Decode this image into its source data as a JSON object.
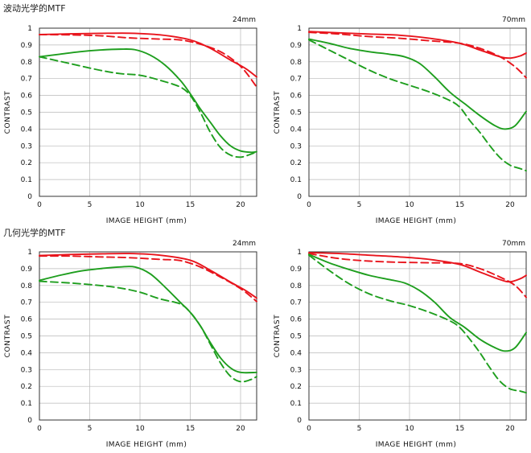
{
  "sections": [
    {
      "title": "波动光学的MTF"
    },
    {
      "title": "几何光学的MTF"
    }
  ],
  "colors": {
    "sagittal_red": "#e8141c",
    "green": "#1e9e1e",
    "grid": "#b8b8b8",
    "frame": "#333333"
  },
  "chart_data": [
    {
      "type": "line",
      "title": "24mm",
      "xlabel": "IMAGE HEIGHT (mm)",
      "ylabel": "CONTRAST",
      "xlim": [
        0,
        21.6
      ],
      "ylim": [
        0,
        1
      ],
      "xticks": [
        "0",
        "5",
        "10",
        "15",
        "20"
      ],
      "yticks": [
        "0",
        "0.1",
        "0.2",
        "0.3",
        "0.4",
        "0.5",
        "0.6",
        "0.7",
        "0.8",
        "0.9",
        "1"
      ],
      "grid": true,
      "series": [
        {
          "color": "red",
          "dash": false,
          "points": [
            [
              0,
              0.962
            ],
            [
              3,
              0.966
            ],
            [
              6,
              0.969
            ],
            [
              9,
              0.97
            ],
            [
              12,
              0.96
            ],
            [
              15,
              0.93
            ],
            [
              17,
              0.88
            ],
            [
              19,
              0.81
            ],
            [
              20.5,
              0.76
            ],
            [
              21.6,
              0.71
            ]
          ]
        },
        {
          "color": "red",
          "dash": true,
          "points": [
            [
              0,
              0.962
            ],
            [
              3,
              0.96
            ],
            [
              6,
              0.955
            ],
            [
              9,
              0.942
            ],
            [
              12,
              0.935
            ],
            [
              14,
              0.93
            ],
            [
              16,
              0.905
            ],
            [
              18,
              0.86
            ],
            [
              19.5,
              0.8
            ],
            [
              20.5,
              0.74
            ],
            [
              21.6,
              0.65
            ]
          ]
        },
        {
          "color": "green",
          "dash": false,
          "points": [
            [
              0,
              0.83
            ],
            [
              2,
              0.845
            ],
            [
              4,
              0.86
            ],
            [
              6,
              0.87
            ],
            [
              8,
              0.875
            ],
            [
              9.5,
              0.872
            ],
            [
              11,
              0.84
            ],
            [
              12.5,
              0.78
            ],
            [
              14,
              0.69
            ],
            [
              15,
              0.61
            ],
            [
              16,
              0.52
            ],
            [
              17,
              0.44
            ],
            [
              18,
              0.36
            ],
            [
              19,
              0.3
            ],
            [
              20,
              0.27
            ],
            [
              21,
              0.262
            ],
            [
              21.6,
              0.265
            ]
          ]
        },
        {
          "color": "green",
          "dash": true,
          "points": [
            [
              0,
              0.83
            ],
            [
              3,
              0.79
            ],
            [
              6,
              0.75
            ],
            [
              8,
              0.73
            ],
            [
              10,
              0.72
            ],
            [
              12,
              0.69
            ],
            [
              14,
              0.65
            ],
            [
              15,
              0.6
            ],
            [
              16,
              0.5
            ],
            [
              17,
              0.38
            ],
            [
              18,
              0.29
            ],
            [
              19,
              0.245
            ],
            [
              20,
              0.233
            ],
            [
              21,
              0.25
            ],
            [
              21.6,
              0.265
            ]
          ]
        }
      ]
    },
    {
      "type": "line",
      "title": "70mm",
      "xlabel": "IMAGE HEIGHT (mm)",
      "ylabel": "CONTRAST",
      "xlim": [
        0,
        21.6
      ],
      "ylim": [
        0,
        1
      ],
      "xticks": [
        "0",
        "5",
        "10",
        "15",
        "20"
      ],
      "yticks": [
        "0",
        "0.1",
        "0.2",
        "0.3",
        "0.4",
        "0.5",
        "0.6",
        "0.7",
        "0.8",
        "0.9",
        "1"
      ],
      "grid": true,
      "series": [
        {
          "color": "red",
          "dash": false,
          "points": [
            [
              0,
              0.98
            ],
            [
              3,
              0.972
            ],
            [
              6,
              0.965
            ],
            [
              9,
              0.958
            ],
            [
              12,
              0.94
            ],
            [
              15,
              0.91
            ],
            [
              17,
              0.87
            ],
            [
              19,
              0.83
            ],
            [
              20,
              0.822
            ],
            [
              21,
              0.835
            ],
            [
              21.6,
              0.852
            ]
          ]
        },
        {
          "color": "red",
          "dash": true,
          "points": [
            [
              0,
              0.975
            ],
            [
              3,
              0.965
            ],
            [
              6,
              0.95
            ],
            [
              9,
              0.94
            ],
            [
              12,
              0.925
            ],
            [
              15,
              0.91
            ],
            [
              17,
              0.88
            ],
            [
              19,
              0.83
            ],
            [
              20.5,
              0.77
            ],
            [
              21.6,
              0.705
            ]
          ]
        },
        {
          "color": "green",
          "dash": false,
          "points": [
            [
              0,
              0.935
            ],
            [
              2,
              0.91
            ],
            [
              4,
              0.88
            ],
            [
              6,
              0.86
            ],
            [
              8,
              0.845
            ],
            [
              9.5,
              0.83
            ],
            [
              11,
              0.79
            ],
            [
              12.5,
              0.71
            ],
            [
              14,
              0.62
            ],
            [
              15.5,
              0.55
            ],
            [
              17,
              0.48
            ],
            [
              18.5,
              0.42
            ],
            [
              19.5,
              0.4
            ],
            [
              20.5,
              0.42
            ],
            [
              21.6,
              0.505
            ]
          ]
        },
        {
          "color": "green",
          "dash": true,
          "points": [
            [
              0,
              0.93
            ],
            [
              2,
              0.87
            ],
            [
              4,
              0.81
            ],
            [
              6,
              0.75
            ],
            [
              8,
              0.7
            ],
            [
              10,
              0.66
            ],
            [
              12,
              0.62
            ],
            [
              14,
              0.57
            ],
            [
              15,
              0.53
            ],
            [
              16,
              0.45
            ],
            [
              17,
              0.38
            ],
            [
              18,
              0.3
            ],
            [
              19,
              0.23
            ],
            [
              20,
              0.185
            ],
            [
              21,
              0.165
            ],
            [
              21.6,
              0.152
            ]
          ]
        }
      ]
    },
    {
      "type": "line",
      "title": "24mm",
      "xlabel": "IMAGE HEIGHT (mm)",
      "ylabel": "CONTRAST",
      "xlim": [
        0,
        21.6
      ],
      "ylim": [
        0,
        1
      ],
      "xticks": [
        "0",
        "5",
        "10",
        "15",
        "20"
      ],
      "yticks": [
        "0",
        "0.1",
        "0.2",
        "0.3",
        "0.4",
        "0.5",
        "0.6",
        "0.7",
        "0.8",
        "0.9",
        "1"
      ],
      "grid": true,
      "series": [
        {
          "color": "red",
          "dash": false,
          "points": [
            [
              0,
              0.978
            ],
            [
              3,
              0.984
            ],
            [
              6,
              0.988
            ],
            [
              9,
              0.99
            ],
            [
              12,
              0.98
            ],
            [
              15,
              0.95
            ],
            [
              17,
              0.89
            ],
            [
              19,
              0.82
            ],
            [
              20.5,
              0.77
            ],
            [
              21.6,
              0.725
            ]
          ]
        },
        {
          "color": "red",
          "dash": true,
          "points": [
            [
              0,
              0.975
            ],
            [
              3,
              0.975
            ],
            [
              6,
              0.97
            ],
            [
              9,
              0.965
            ],
            [
              12,
              0.955
            ],
            [
              14,
              0.948
            ],
            [
              16,
              0.91
            ],
            [
              18,
              0.85
            ],
            [
              19.5,
              0.8
            ],
            [
              20.5,
              0.76
            ],
            [
              21.6,
              0.705
            ]
          ]
        },
        {
          "color": "green",
          "dash": false,
          "points": [
            [
              0,
              0.83
            ],
            [
              2,
              0.86
            ],
            [
              4,
              0.885
            ],
            [
              6,
              0.9
            ],
            [
              8,
              0.91
            ],
            [
              9.5,
              0.91
            ],
            [
              11,
              0.87
            ],
            [
              12.5,
              0.79
            ],
            [
              14,
              0.7
            ],
            [
              15,
              0.64
            ],
            [
              16,
              0.56
            ],
            [
              17,
              0.46
            ],
            [
              18,
              0.37
            ],
            [
              19,
              0.31
            ],
            [
              20,
              0.283
            ],
            [
              21.6,
              0.283
            ]
          ]
        },
        {
          "color": "green",
          "dash": true,
          "points": [
            [
              0,
              0.825
            ],
            [
              3,
              0.815
            ],
            [
              6,
              0.8
            ],
            [
              8,
              0.785
            ],
            [
              10,
              0.76
            ],
            [
              12,
              0.72
            ],
            [
              14,
              0.69
            ],
            [
              15,
              0.64
            ],
            [
              16,
              0.56
            ],
            [
              17,
              0.45
            ],
            [
              18,
              0.34
            ],
            [
              19,
              0.26
            ],
            [
              20,
              0.228
            ],
            [
              21,
              0.24
            ],
            [
              21.6,
              0.258
            ]
          ]
        }
      ]
    },
    {
      "type": "line",
      "title": "70mm",
      "xlabel": "IMAGE HEIGHT (mm)",
      "ylabel": "CONTRAST",
      "xlim": [
        0,
        21.6
      ],
      "ylim": [
        0,
        1
      ],
      "xticks": [
        "0",
        "5",
        "10",
        "15",
        "20"
      ],
      "yticks": [
        "0",
        "0.1",
        "0.2",
        "0.3",
        "0.4",
        "0.5",
        "0.6",
        "0.7",
        "0.8",
        "0.9",
        "1"
      ],
      "grid": true,
      "series": [
        {
          "color": "red",
          "dash": false,
          "points": [
            [
              0,
              0.995
            ],
            [
              3,
              0.99
            ],
            [
              6,
              0.98
            ],
            [
              9,
              0.97
            ],
            [
              12,
              0.955
            ],
            [
              15,
              0.925
            ],
            [
              17,
              0.88
            ],
            [
              19,
              0.835
            ],
            [
              20,
              0.822
            ],
            [
              21,
              0.84
            ],
            [
              21.6,
              0.86
            ]
          ]
        },
        {
          "color": "red",
          "dash": true,
          "points": [
            [
              0,
              0.99
            ],
            [
              3,
              0.96
            ],
            [
              6,
              0.945
            ],
            [
              9,
              0.938
            ],
            [
              12,
              0.935
            ],
            [
              15,
              0.93
            ],
            [
              17,
              0.9
            ],
            [
              19,
              0.85
            ],
            [
              20.5,
              0.8
            ],
            [
              21.6,
              0.73
            ]
          ]
        },
        {
          "color": "green",
          "dash": false,
          "points": [
            [
              0,
              0.985
            ],
            [
              2,
              0.935
            ],
            [
              4,
              0.895
            ],
            [
              6,
              0.86
            ],
            [
              8,
              0.835
            ],
            [
              9.5,
              0.815
            ],
            [
              11,
              0.77
            ],
            [
              12.5,
              0.7
            ],
            [
              14,
              0.61
            ],
            [
              15.5,
              0.55
            ],
            [
              17,
              0.48
            ],
            [
              18.5,
              0.43
            ],
            [
              19.5,
              0.41
            ],
            [
              20.5,
              0.43
            ],
            [
              21.6,
              0.52
            ]
          ]
        },
        {
          "color": "green",
          "dash": true,
          "points": [
            [
              0,
              0.98
            ],
            [
              2,
              0.89
            ],
            [
              4,
              0.81
            ],
            [
              6,
              0.75
            ],
            [
              8,
              0.71
            ],
            [
              10,
              0.68
            ],
            [
              12,
              0.64
            ],
            [
              14,
              0.59
            ],
            [
              15,
              0.55
            ],
            [
              16,
              0.48
            ],
            [
              17,
              0.4
            ],
            [
              18,
              0.31
            ],
            [
              19,
              0.23
            ],
            [
              20,
              0.185
            ],
            [
              21,
              0.172
            ],
            [
              21.6,
              0.162
            ]
          ]
        }
      ]
    }
  ]
}
